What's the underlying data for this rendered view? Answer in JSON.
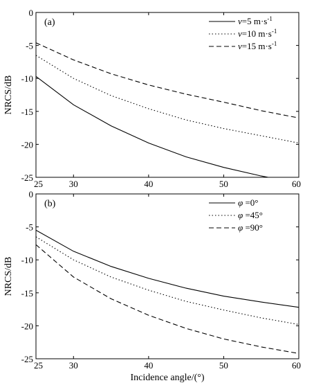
{
  "chart_data": [
    {
      "type": "line",
      "panel_label": "(a)",
      "xlabel": "",
      "ylabel": "NRCS/dB",
      "xlim": [
        25,
        60
      ],
      "ylim": [
        -25,
        0
      ],
      "xticks": [
        25,
        30,
        40,
        50,
        60
      ],
      "xtick_labels": [
        "25",
        "30",
        "40",
        "50",
        "60"
      ],
      "yticks": [
        0,
        -5,
        -10,
        -15,
        -20,
        -25
      ],
      "ytick_labels": [
        "0",
        "-5",
        "-10",
        "-15",
        "-20",
        "-25"
      ],
      "grid": false,
      "legend_position": "top-right",
      "x": [
        25,
        30,
        35,
        40,
        45,
        50,
        55,
        60
      ],
      "series": [
        {
          "legend_var": "v",
          "legend_rest": "=5 m·s",
          "legend_sup": "-1",
          "dash": "solid",
          "values": [
            -9.7,
            -14.0,
            -17.2,
            -19.8,
            -21.9,
            -23.5,
            -24.8,
            -25.9
          ]
        },
        {
          "legend_var": "v",
          "legend_rest": "=10 m·s",
          "legend_sup": "-1",
          "dash": "dotted",
          "values": [
            -6.5,
            -10.0,
            -12.6,
            -14.6,
            -16.3,
            -17.6,
            -18.7,
            -19.8
          ]
        },
        {
          "legend_var": "v",
          "legend_rest": "=15 m·s",
          "legend_sup": "-1",
          "dash": "dashed",
          "values": [
            -4.6,
            -7.2,
            -9.3,
            -11.0,
            -12.4,
            -13.6,
            -14.9,
            -16.0
          ]
        }
      ]
    },
    {
      "type": "line",
      "panel_label": "(b)",
      "xlabel": "Incidence angle/(°)",
      "ylabel": "NRCS/dB",
      "xlim": [
        25,
        60
      ],
      "ylim": [
        -25,
        0
      ],
      "xticks": [
        25,
        30,
        40,
        50,
        60
      ],
      "xtick_labels": [
        "25",
        "30",
        "40",
        "50",
        "60"
      ],
      "yticks": [
        0,
        -5,
        -10,
        -15,
        -20,
        -25
      ],
      "ytick_labels": [
        "0",
        "-5",
        "-10",
        "-15",
        "-20",
        "-25"
      ],
      "grid": false,
      "legend_position": "top-right",
      "x": [
        25,
        30,
        35,
        40,
        45,
        50,
        55,
        60
      ],
      "series": [
        {
          "legend_var": "φ",
          "legend_rest": " =0°",
          "legend_sup": "",
          "dash": "solid",
          "values": [
            -5.5,
            -8.7,
            -11.0,
            -12.8,
            -14.3,
            -15.5,
            -16.4,
            -17.2
          ]
        },
        {
          "legend_var": "φ",
          "legend_rest": " =45°",
          "legend_sup": "",
          "dash": "dotted",
          "values": [
            -6.5,
            -10.0,
            -12.6,
            -14.6,
            -16.3,
            -17.6,
            -18.8,
            -19.8
          ]
        },
        {
          "legend_var": "φ",
          "legend_rest": " =90°",
          "legend_sup": "",
          "dash": "dashed",
          "values": [
            -7.7,
            -12.6,
            -15.9,
            -18.4,
            -20.4,
            -22.0,
            -23.2,
            -24.2
          ]
        }
      ]
    }
  ]
}
